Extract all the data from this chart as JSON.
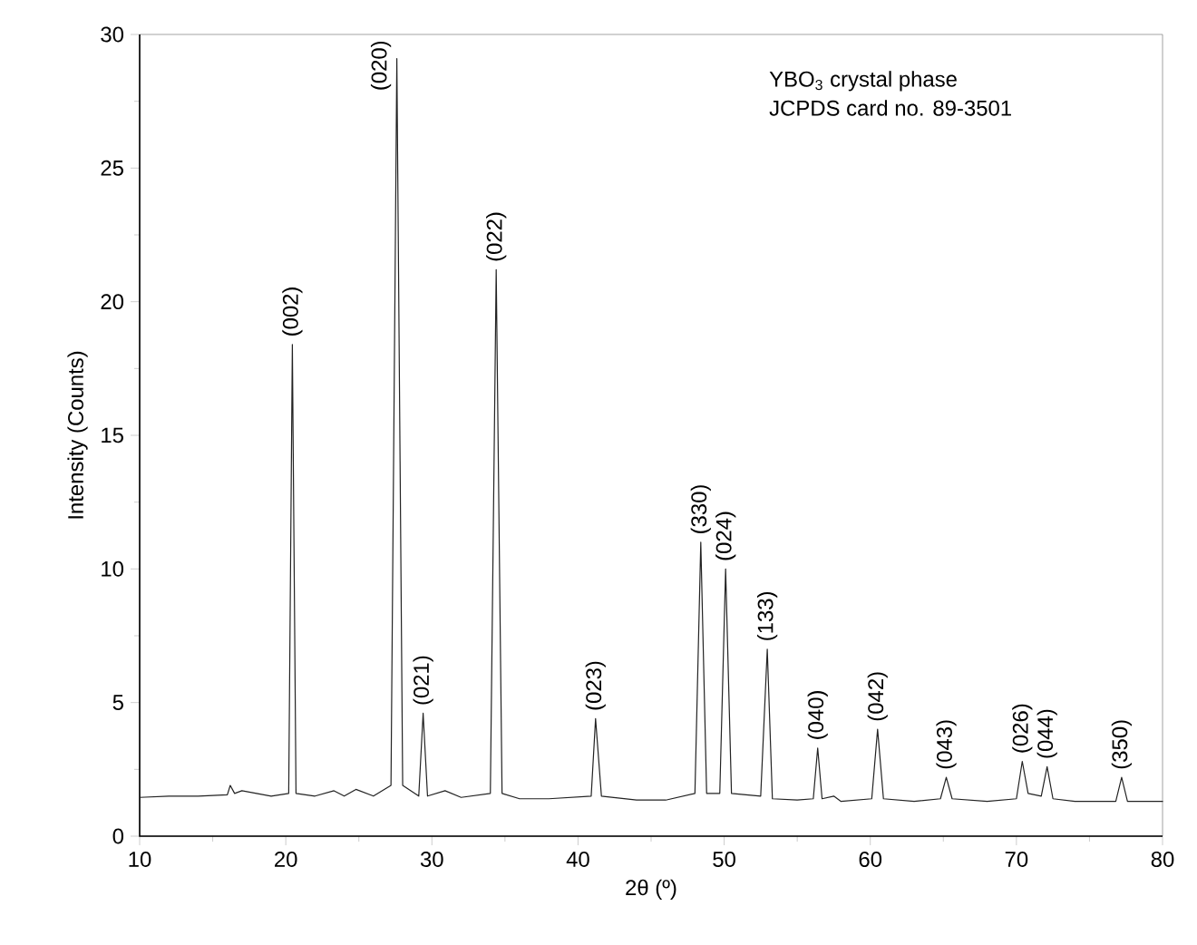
{
  "chart_data": {
    "type": "line",
    "xlabel": "2θ (º)",
    "ylabel": "Intensity (Counts)",
    "xlim": [
      10,
      80
    ],
    "xticks": [
      10,
      20,
      30,
      40,
      50,
      60,
      70,
      80
    ],
    "ylim": [
      0,
      30
    ],
    "yticks": [
      0,
      5,
      10,
      15,
      20,
      25,
      30
    ],
    "series": [
      {
        "color": "#222222",
        "x": [
          10,
          12,
          14,
          16,
          16.2,
          16.5,
          17,
          19,
          20.2,
          20.45,
          20.7,
          22,
          23.3,
          24,
          24.8,
          26,
          27.2,
          27.6,
          28,
          29.1,
          29.4,
          29.7,
          30.9,
          32,
          34.0,
          34.4,
          34.8,
          36,
          38,
          40.9,
          41.2,
          41.6,
          44,
          46,
          48.0,
          48.4,
          48.8,
          49.7,
          50.1,
          50.5,
          52.5,
          52.95,
          53.3,
          55,
          56.1,
          56.4,
          56.7,
          57.5,
          58,
          60.1,
          60.5,
          60.9,
          63,
          64.8,
          65.2,
          65.6,
          68,
          70.0,
          70.4,
          70.8,
          71.7,
          72.1,
          72.5,
          74,
          76.8,
          77.2,
          77.6,
          80
        ],
        "values": [
          1.45,
          1.5,
          1.5,
          1.55,
          1.9,
          1.6,
          1.7,
          1.5,
          1.6,
          18.4,
          1.6,
          1.5,
          1.7,
          1.5,
          1.75,
          1.5,
          1.9,
          29.1,
          1.9,
          1.5,
          4.6,
          1.5,
          1.7,
          1.45,
          1.6,
          21.2,
          1.6,
          1.4,
          1.4,
          1.5,
          4.4,
          1.5,
          1.35,
          1.35,
          1.6,
          11.0,
          1.6,
          1.6,
          10.0,
          1.6,
          1.5,
          7.0,
          1.4,
          1.35,
          1.4,
          3.3,
          1.4,
          1.5,
          1.3,
          1.4,
          4.0,
          1.4,
          1.3,
          1.4,
          2.2,
          1.4,
          1.3,
          1.4,
          2.8,
          1.6,
          1.5,
          2.6,
          1.4,
          1.3,
          1.3,
          2.2,
          1.3,
          1.3
        ]
      }
    ],
    "annotations": [
      {
        "text": "(002)",
        "x": 20.45,
        "y": 18.4
      },
      {
        "text": "(020)",
        "x": 27.6,
        "y": 29.1
      },
      {
        "text": "(021)",
        "x": 29.4,
        "y": 4.6
      },
      {
        "text": "(022)",
        "x": 34.4,
        "y": 21.2
      },
      {
        "text": "(023)",
        "x": 41.2,
        "y": 4.4
      },
      {
        "text": "(330)",
        "x": 48.4,
        "y": 11.0
      },
      {
        "text": "(024)",
        "x": 50.1,
        "y": 10.0
      },
      {
        "text": "(133)",
        "x": 52.95,
        "y": 7.0
      },
      {
        "text": "(040)",
        "x": 56.4,
        "y": 3.3
      },
      {
        "text": "(042)",
        "x": 60.5,
        "y": 4.0
      },
      {
        "text": "(043)",
        "x": 65.2,
        "y": 2.2
      },
      {
        "text": "(026)",
        "x": 70.4,
        "y": 2.8
      },
      {
        "text": "(044)",
        "x": 72.1,
        "y": 2.6
      },
      {
        "text": "(350)",
        "x": 77.2,
        "y": 2.2
      },
      "YBO$_{3}$ crystal phase",
      "JCPDS card no. 89-3501"
    ]
  }
}
